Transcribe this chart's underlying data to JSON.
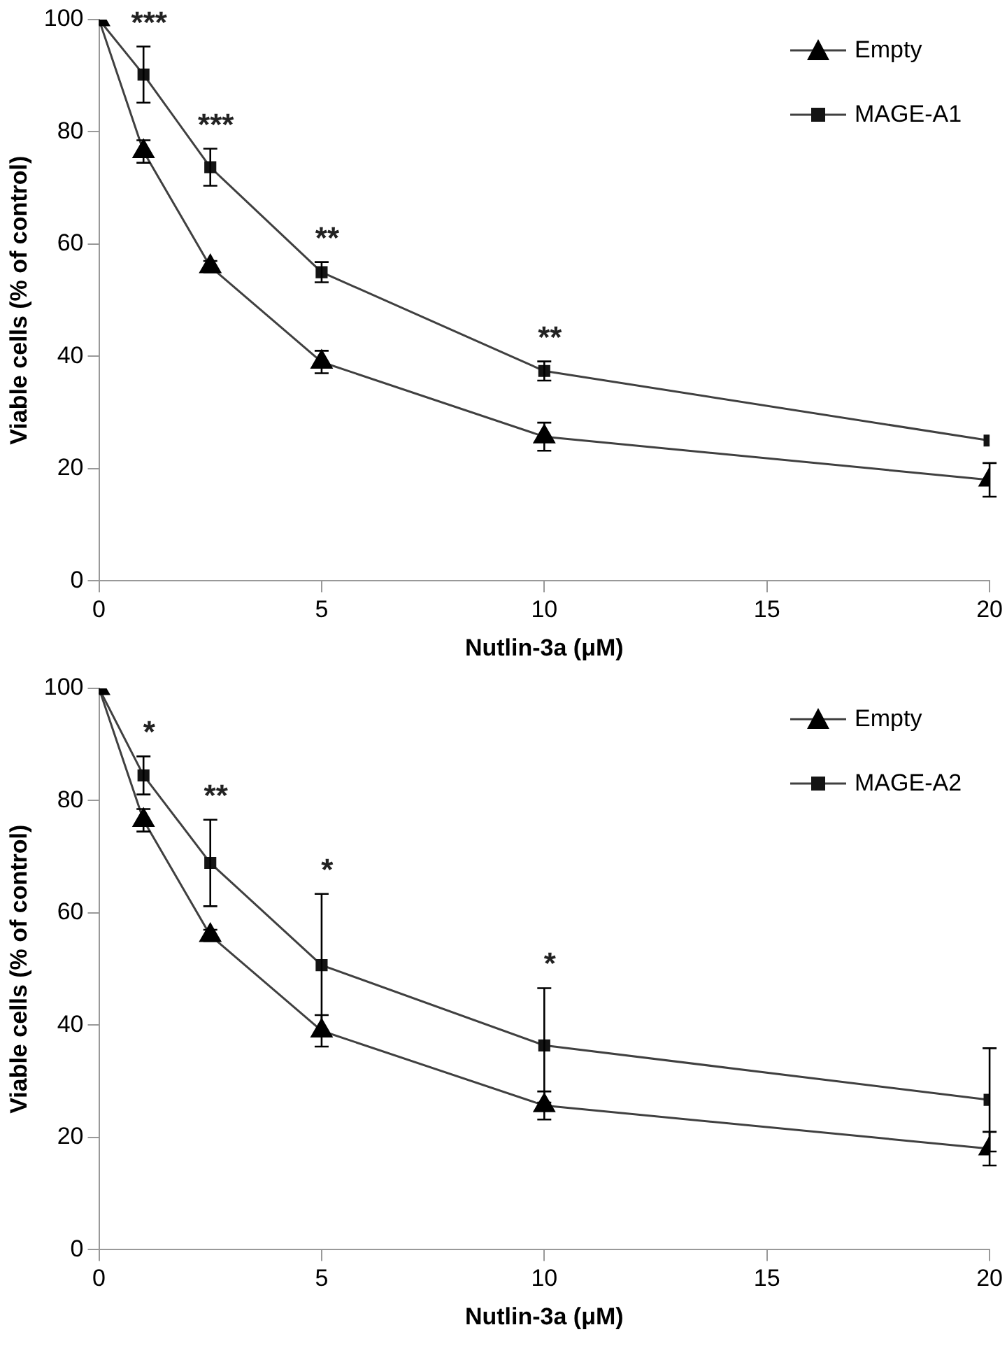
{
  "chart_data": [
    {
      "type": "line",
      "xlabel": "Nutlin-3a (μM)",
      "ylabel": "Viable cells (% of control)",
      "x": [
        0,
        1,
        2.5,
        5,
        10,
        20
      ],
      "xlim": [
        0,
        20
      ],
      "xticks": [
        0,
        5,
        10,
        15,
        20
      ],
      "ylim": [
        0,
        100
      ],
      "yticks": [
        0,
        20,
        40,
        60,
        80,
        100
      ],
      "grid": false,
      "legend": "top right",
      "line_style": "solid",
      "series": [
        {
          "name": "Empty",
          "color": "#000000",
          "marker": "triangle",
          "values": [
            100,
            76.5,
            56,
            39,
            25.7,
            18
          ],
          "errors": [
            null,
            2,
            1,
            2,
            2.5,
            3
          ]
        },
        {
          "name": "MAGE-A1",
          "color": "#141414",
          "marker": "square",
          "values": [
            100,
            90.2,
            73.7,
            55,
            37.4,
            25
          ],
          "errors": [
            null,
            5,
            3.3,
            1.8,
            1.7,
            null
          ]
        }
      ],
      "annotations": [
        {
          "text": "***",
          "x": 1,
          "y": 90.2
        },
        {
          "text": "***",
          "x": 2.5,
          "y": 73.7
        },
        {
          "text": "**",
          "x": 5,
          "y": 55
        },
        {
          "text": "**",
          "x": 10,
          "y": 37.4
        }
      ]
    },
    {
      "type": "line",
      "xlabel": "Nutlin-3a (μM)",
      "ylabel": "Viable cells (% of control)",
      "x": [
        0,
        1,
        2.5,
        5,
        10,
        20
      ],
      "xlim": [
        0,
        20
      ],
      "xticks": [
        0,
        5,
        10,
        15,
        20
      ],
      "ylim": [
        0,
        100
      ],
      "yticks": [
        0,
        20,
        40,
        60,
        80,
        100
      ],
      "grid": false,
      "legend": "top right",
      "line_style": "solid",
      "series": [
        {
          "name": "Empty",
          "color": "#000000",
          "marker": "triangle",
          "values": [
            100,
            76.5,
            56,
            39,
            25.7,
            18
          ],
          "errors": [
            null,
            2,
            1,
            2.8,
            2.5,
            3
          ]
        },
        {
          "name": "MAGE-A2",
          "color": "#141414",
          "marker": "square",
          "values": [
            100,
            84.5,
            68.9,
            50.7,
            36.4,
            26.7
          ],
          "errors": [
            null,
            3.4,
            7.7,
            12.7,
            10.2,
            9.2
          ]
        }
      ],
      "annotations": [
        {
          "text": "*",
          "x": 1,
          "y": 84.5
        },
        {
          "text": "**",
          "x": 2.5,
          "y": 68.9
        },
        {
          "text": "*",
          "x": 5,
          "y": 50.7
        },
        {
          "text": "*",
          "x": 10,
          "y": 36.4
        }
      ]
    }
  ]
}
